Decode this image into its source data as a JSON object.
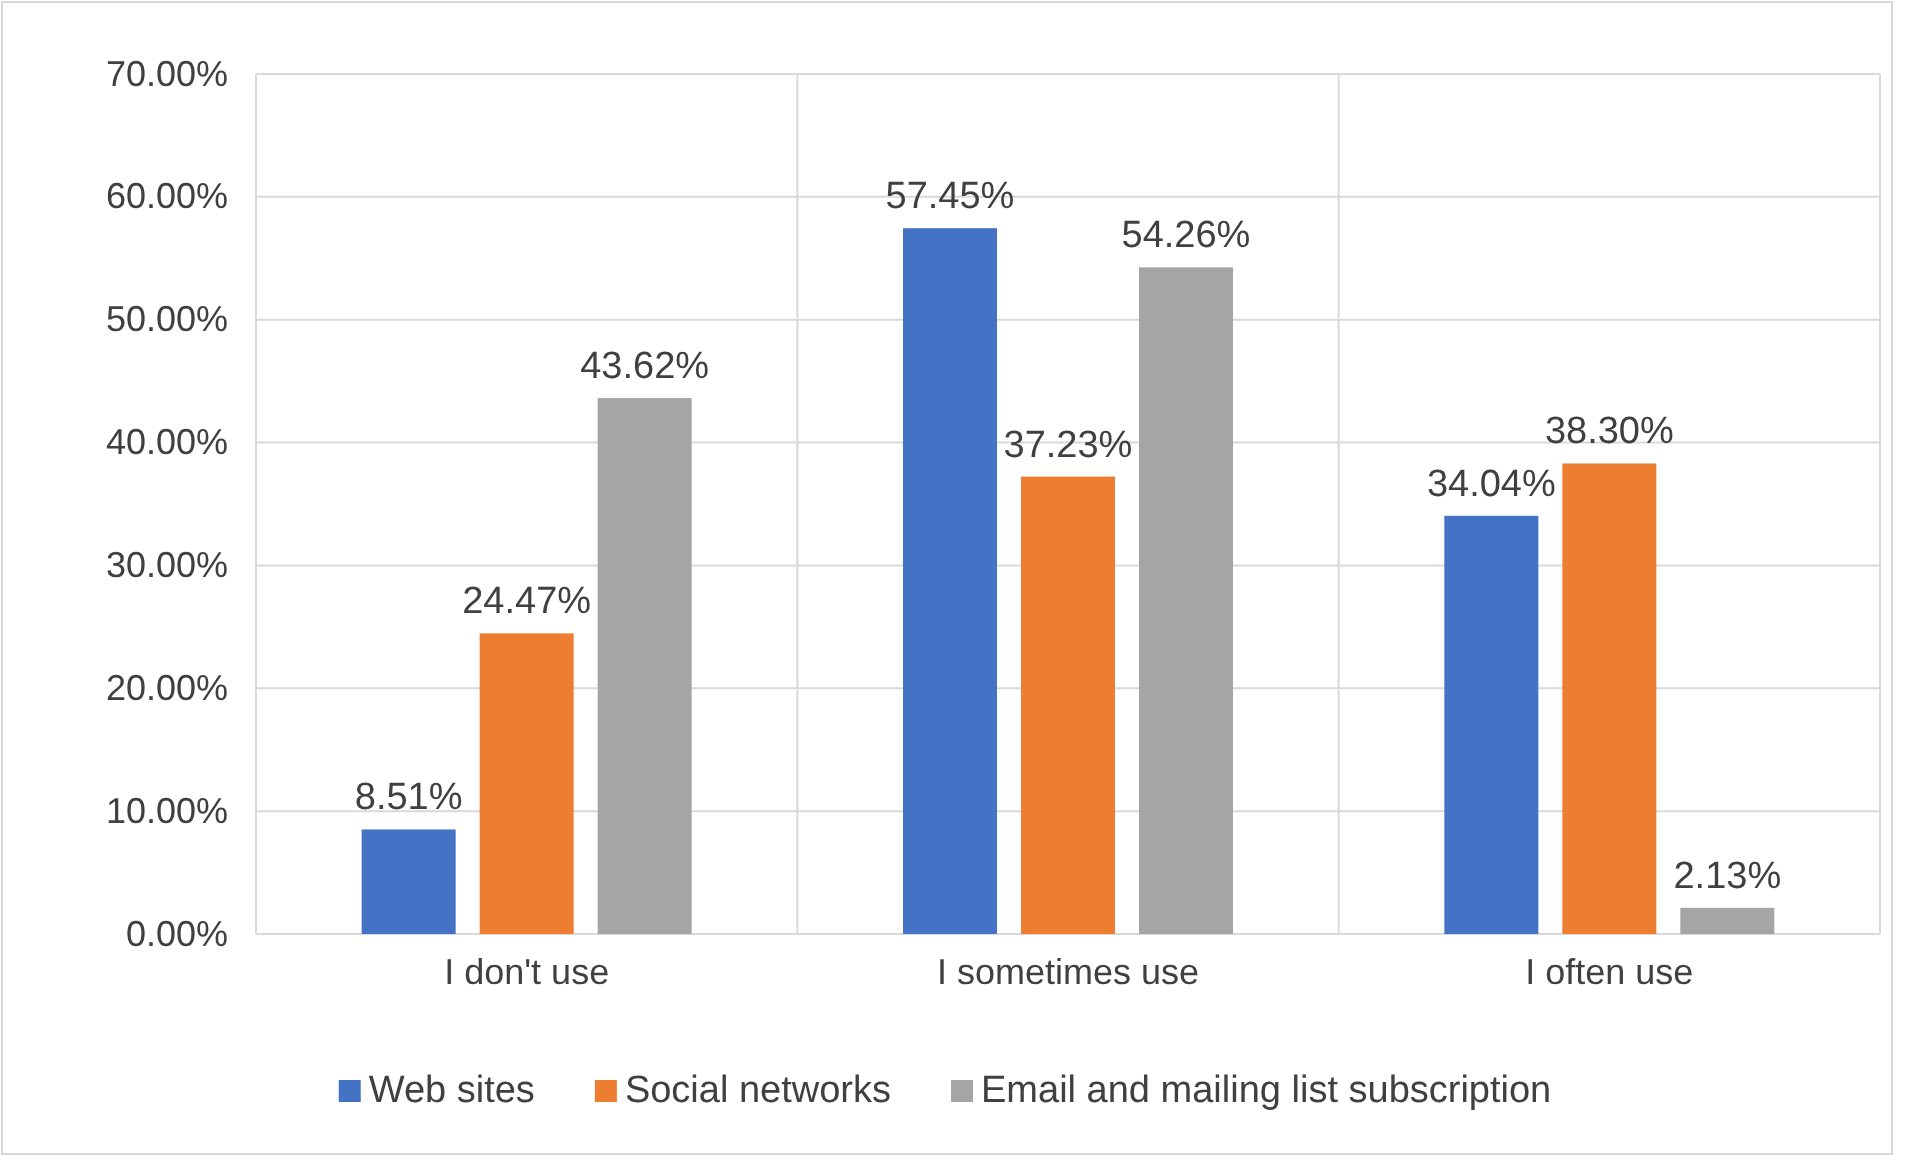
{
  "chart_data": {
    "type": "bar",
    "categories": [
      "I don't use",
      "I sometimes use",
      "I often use"
    ],
    "series": [
      {
        "name": "Web sites",
        "color": "#4472c4",
        "values": [
          8.51,
          57.45,
          34.04
        ],
        "value_labels": [
          "8.51%",
          "57.45%",
          "34.04%"
        ]
      },
      {
        "name": "Social networks",
        "color": "#ed7d31",
        "values": [
          24.47,
          37.23,
          38.3
        ],
        "value_labels": [
          "24.47%",
          "37.23%",
          "38.30%"
        ]
      },
      {
        "name": "Email and mailing list subscription",
        "color": "#a5a5a5",
        "values": [
          43.62,
          54.26,
          2.13
        ],
        "value_labels": [
          "43.62%",
          "54.26%",
          "2.13%"
        ]
      }
    ],
    "ylim": [
      0,
      70
    ],
    "yticks": [
      {
        "value": 0,
        "label": "0.00%"
      },
      {
        "value": 10,
        "label": "10.00%"
      },
      {
        "value": 20,
        "label": "20.00%"
      },
      {
        "value": 30,
        "label": "30.00%"
      },
      {
        "value": 40,
        "label": "40.00%"
      },
      {
        "value": 50,
        "label": "50.00%"
      },
      {
        "value": 60,
        "label": "60.00%"
      },
      {
        "value": 70,
        "label": "70.00%"
      }
    ],
    "grid": true,
    "legend": "bottom"
  }
}
